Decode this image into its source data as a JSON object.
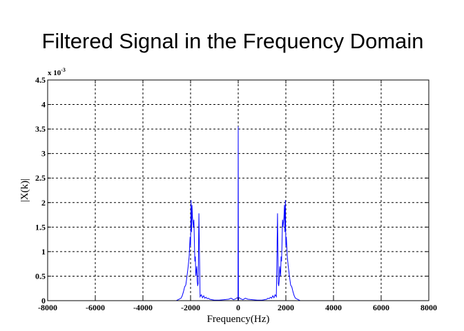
{
  "chart_data": {
    "type": "line",
    "title": "Filtered Signal in the Frequency Domain",
    "xlabel": "Frequency(Hz)",
    "ylabel": "|X(k)|",
    "y_multiplier_label": "x 10",
    "y_multiplier_exponent": "-3",
    "xlim": [
      -8000,
      8000
    ],
    "ylim": [
      0,
      4.5
    ],
    "x_ticks": [
      -8000,
      -6000,
      -4000,
      -2000,
      0,
      2000,
      4000,
      6000,
      8000
    ],
    "x_tick_labels": [
      "-8000",
      "-6000",
      "-4000",
      "-2000",
      "0",
      "2000",
      "4000",
      "6000",
      "8000"
    ],
    "y_ticks": [
      0,
      0.5,
      1,
      1.5,
      2,
      2.5,
      3,
      3.5,
      4,
      4.5
    ],
    "y_tick_labels": [
      "0",
      "0.5",
      "1",
      "1.5",
      "2",
      "2.5",
      "3",
      "3.5",
      "4",
      "4.5"
    ],
    "grid": true,
    "line_color": "#0000ff",
    "series": [
      {
        "x": [
          -8000,
          -2600,
          -2400,
          -2350,
          -2300,
          -2250,
          -2200,
          -2150,
          -2100,
          -2060,
          -2020,
          -2000,
          -1980,
          -1960,
          -1940,
          -1920,
          -1900,
          -1880,
          -1860,
          -1840,
          -1820,
          -1800,
          -1780,
          -1760,
          -1740,
          -1720,
          -1700,
          -1680,
          -1650,
          -1600,
          -1550,
          -1500,
          -1450,
          -1400,
          -1350,
          -1300,
          -1250,
          -1200,
          -1100,
          -1000,
          -800,
          -600,
          -400,
          -300,
          -200,
          -100,
          -50,
          -20,
          -10,
          0,
          10,
          20,
          50,
          100,
          200,
          300,
          400,
          600,
          800,
          1000,
          1100,
          1200,
          1250,
          1300,
          1350,
          1400,
          1450,
          1500,
          1550,
          1600,
          1650,
          1680,
          1700,
          1720,
          1740,
          1760,
          1780,
          1800,
          1820,
          1840,
          1860,
          1880,
          1900,
          1920,
          1940,
          1960,
          1980,
          2000,
          2020,
          2060,
          2100,
          2150,
          2200,
          2250,
          2300,
          2350,
          2400,
          2600,
          8000
        ],
        "y": [
          0.0,
          0.0,
          0.05,
          0.1,
          0.18,
          0.28,
          0.32,
          0.5,
          0.7,
          0.9,
          1.3,
          1.1,
          2.05,
          1.4,
          1.95,
          1.7,
          1.6,
          1.5,
          1.65,
          1.2,
          0.8,
          0.9,
          0.5,
          0.6,
          0.7,
          0.4,
          0.3,
          0.35,
          1.78,
          0.08,
          0.12,
          0.06,
          0.1,
          0.05,
          0.07,
          0.04,
          0.05,
          0.03,
          0.02,
          0.01,
          0.01,
          0.02,
          0.03,
          0.05,
          0.02,
          0.04,
          0.06,
          0.05,
          0.01,
          3.55,
          0.01,
          0.05,
          0.06,
          0.04,
          0.02,
          0.05,
          0.03,
          0.02,
          0.01,
          0.01,
          0.02,
          0.03,
          0.05,
          0.04,
          0.07,
          0.05,
          0.1,
          0.06,
          0.12,
          0.08,
          1.78,
          0.35,
          0.3,
          0.4,
          0.7,
          0.6,
          0.5,
          0.9,
          0.8,
          1.2,
          1.65,
          1.5,
          1.6,
          1.7,
          1.95,
          1.4,
          2.05,
          1.1,
          1.3,
          0.9,
          0.7,
          0.5,
          0.32,
          0.28,
          0.18,
          0.1,
          0.05,
          0.0,
          0.0
        ]
      }
    ]
  }
}
